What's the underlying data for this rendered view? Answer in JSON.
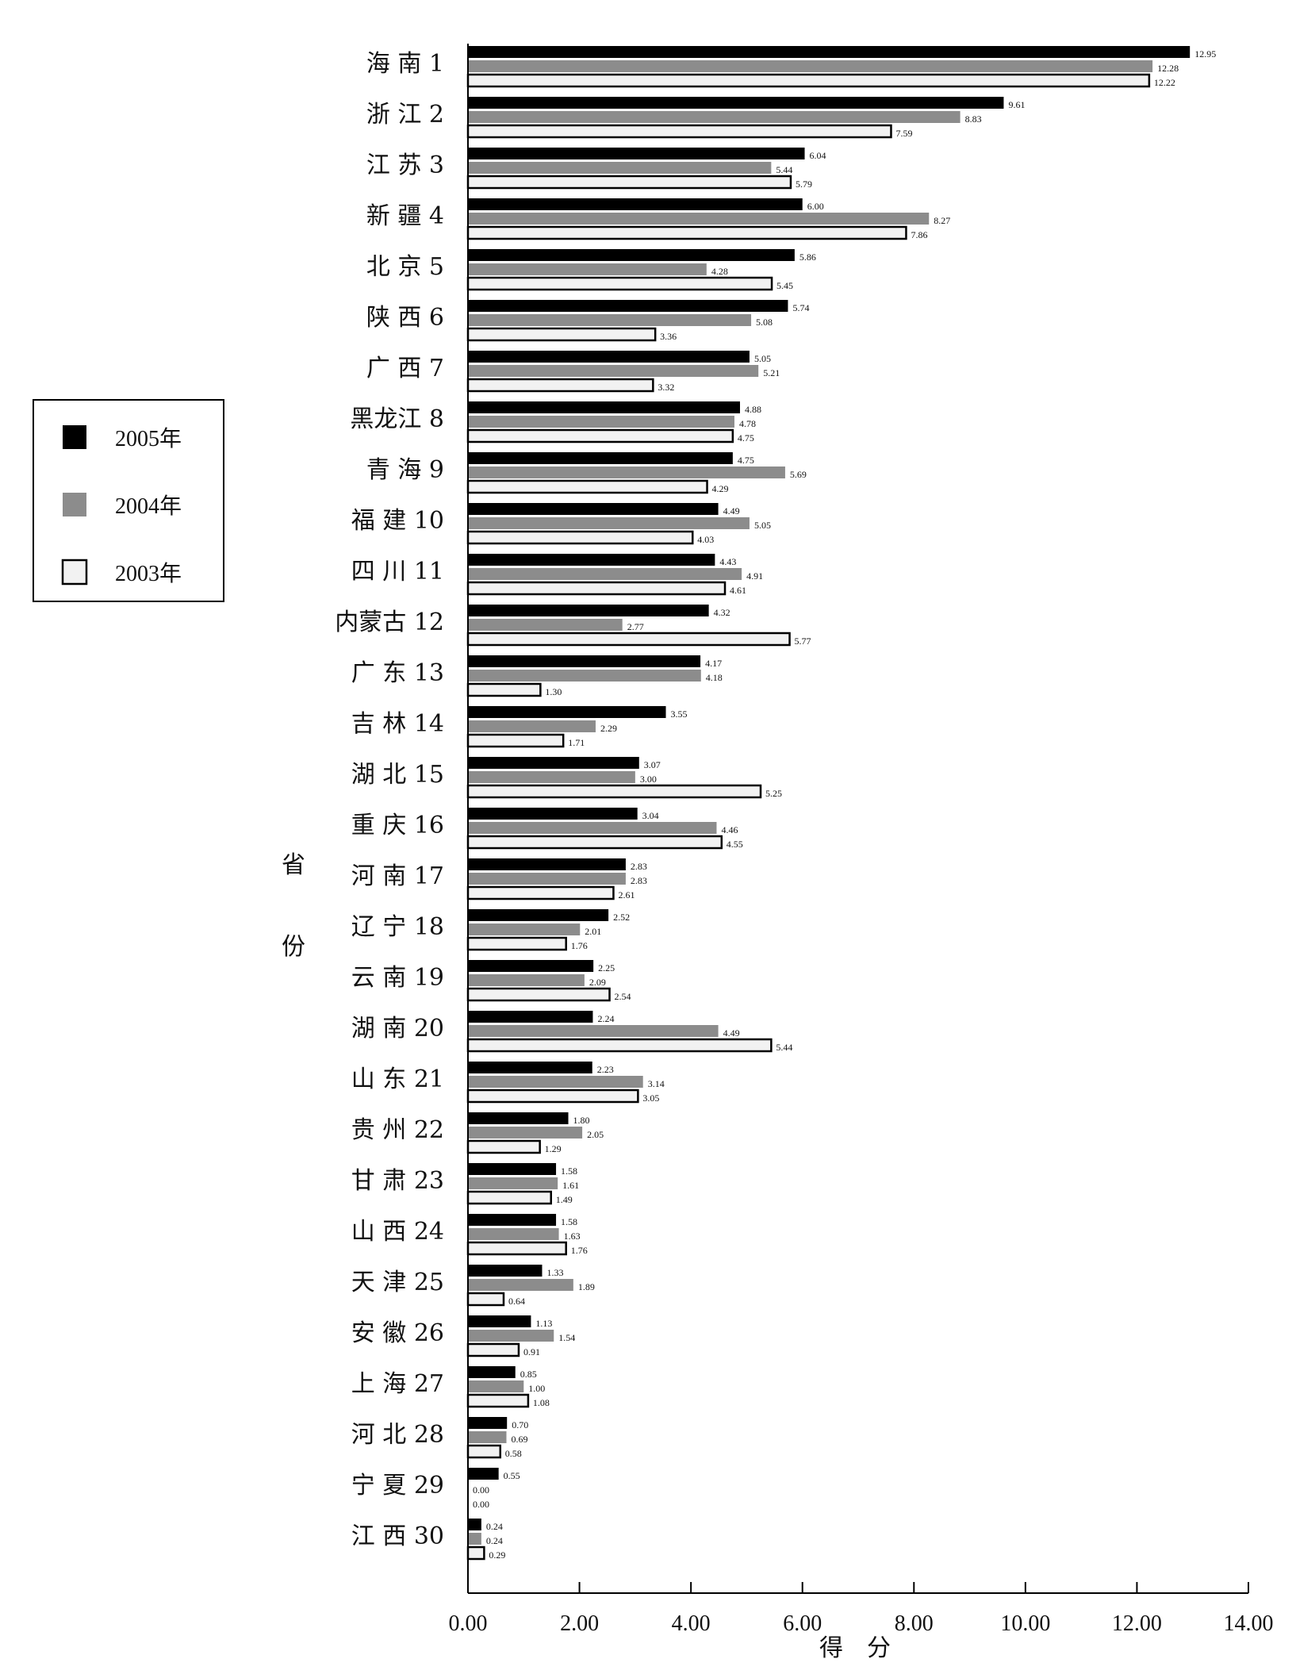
{
  "chart_data": {
    "type": "bar",
    "orientation": "horizontal",
    "categories": [
      "海 南 1",
      "浙 江 2",
      "江 苏 3",
      "新 疆 4",
      "北 京 5",
      "陕 西 6",
      "广 西 7",
      "黑龙江 8",
      "青 海 9",
      "福 建 10",
      "四 川 11",
      "内蒙古 12",
      "广 东 13",
      "吉 林 14",
      "湖 北 15",
      "重 庆 16",
      "河 南 17",
      "辽 宁 18",
      "云 南 19",
      "湖 南 20",
      "山 东 21",
      "贵 州 22",
      "甘 肃 23",
      "山 西 24",
      "天 津 25",
      "安 徽 26",
      "上 海 27",
      "河 北 28",
      "宁 夏 29",
      "江 西 30"
    ],
    "series": [
      {
        "name": "2005年",
        "color": "#000000",
        "values": [
          12.95,
          9.61,
          6.04,
          6.0,
          5.86,
          5.74,
          5.05,
          4.88,
          4.75,
          4.49,
          4.43,
          4.32,
          4.17,
          3.55,
          3.07,
          3.04,
          2.83,
          2.52,
          2.25,
          2.24,
          2.23,
          1.8,
          1.58,
          1.58,
          1.33,
          1.13,
          0.85,
          0.7,
          0.55,
          0.24
        ],
        "labels": [
          "12.95",
          "9.61",
          "6.04",
          "6.00",
          "5.86",
          "5.74",
          "5.05",
          "4.88",
          "4.75",
          "4.49",
          "4.43",
          "4.32",
          "4.17",
          "3.55",
          "3.07",
          "3.04",
          "2.83",
          "2.52",
          "2.25",
          "2.24",
          "2.23",
          "1.80",
          "1.58",
          "1.58",
          "1.33",
          "1.13",
          "0.85",
          "0.70",
          "0.55",
          "0.24"
        ]
      },
      {
        "name": "2004年",
        "color": "#8c8c8c",
        "values": [
          12.28,
          8.83,
          5.44,
          8.27,
          4.28,
          5.08,
          5.21,
          4.78,
          5.69,
          5.05,
          4.91,
          2.77,
          4.18,
          2.29,
          3.0,
          4.46,
          2.83,
          2.01,
          2.09,
          4.49,
          3.14,
          2.05,
          1.61,
          1.63,
          1.89,
          1.54,
          1.0,
          0.69,
          0.0,
          0.24
        ],
        "labels": [
          "12.28",
          "8.83",
          "5.44",
          "8.27",
          "4.28",
          "5.08",
          "5.21",
          "4.78",
          "5.69",
          "5.05",
          "4.91",
          "2.77",
          "4.18",
          "2.29",
          "3.00",
          "4.46",
          "2.83",
          "2.01",
          "2.09",
          "4.49",
          "3.14",
          "2.05",
          "1.61",
          "1.63",
          "1.89",
          "1.54",
          "1.00",
          "0.69",
          "0.00",
          "0.24"
        ]
      },
      {
        "name": "2003年",
        "color": "#f2f2f2",
        "values": [
          12.22,
          7.59,
          5.79,
          7.86,
          5.45,
          3.36,
          3.32,
          4.75,
          4.29,
          4.03,
          4.61,
          5.77,
          1.3,
          1.71,
          5.25,
          4.55,
          2.61,
          1.76,
          2.54,
          5.44,
          3.05,
          1.29,
          1.49,
          1.76,
          0.64,
          0.91,
          1.08,
          0.58,
          0.0,
          0.29
        ],
        "labels": [
          "12.22",
          "7.59",
          "5.79",
          "7.86",
          "5.45",
          "3.36",
          "3.32",
          "4.75",
          "4.29",
          "4.03",
          "4.61",
          "5.77",
          "1.30",
          "1.71",
          "5.25",
          "4.55",
          "2.61",
          "1.76",
          "2.54",
          "5.44",
          "3.05",
          "1.29",
          "1.49",
          "1.76",
          "0.64",
          "0.91",
          "1.08",
          "0.58",
          "0.00",
          "0.29"
        ]
      }
    ],
    "xlim": [
      0,
      14
    ],
    "xticks": [
      "0.00",
      "2.00",
      "4.00",
      "6.00",
      "8.00",
      "10.00",
      "12.00",
      "14.00"
    ],
    "xlabel": "得　分",
    "ylabel_top": "省",
    "ylabel_bottom": "份",
    "legend_position": "left",
    "grid": false
  }
}
